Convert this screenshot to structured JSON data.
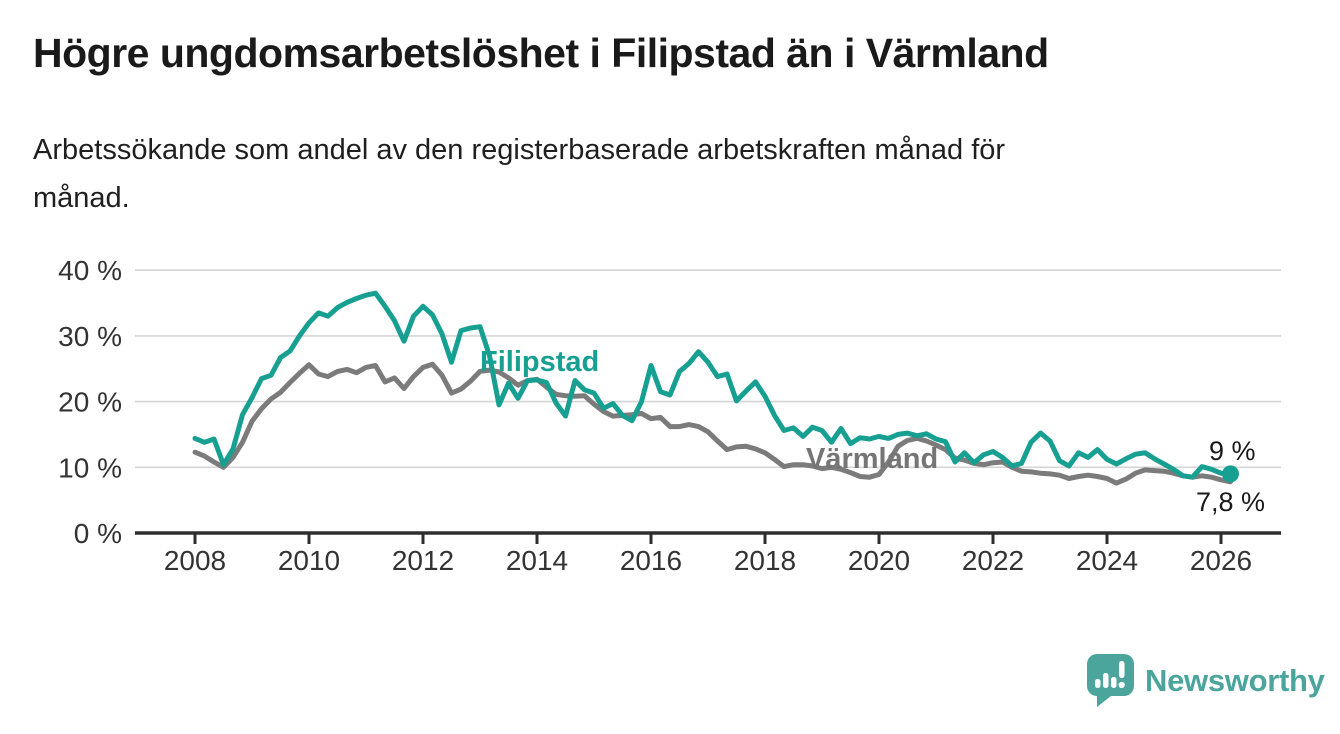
{
  "header": {
    "title": "Högre ungdomsarbetslöshet i Filipstad än i Värmland",
    "subtitle_line1": "Arbetssökande som andel av den registerbaserade arbetskraften månad för",
    "subtitle_line2": "månad."
  },
  "footer": {
    "brand_name": "Newsworthy",
    "brand_color": "#4ba59d",
    "logo_icon": "speech-bubble-bar-chart-exclamation"
  },
  "colors": {
    "background": "#ffffff",
    "title_text": "#1a1a1a",
    "axis_text": "#333333",
    "gridline": "#d5d5d5",
    "axis_line": "#2e2e2e",
    "filipstad_teal": "#17a092",
    "varmland_gray": "#7b7b7b",
    "varmland_label_gray": "#757575",
    "end_label_text": "#1a1a1a"
  },
  "chart_data": {
    "type": "line",
    "title": "Högre ungdomsarbetslöshet i Filipstad än i Värmland",
    "subtitle": "Arbetssökande som andel av den registerbaserade arbetskraften månad för månad.",
    "unit": "%",
    "grid": true,
    "legend_position": "inline-labels",
    "x_start_year": 2008.0,
    "x_step_months": 2,
    "x_end_year": 2026.17,
    "xlim": [
      2007.9,
      2027.05
    ],
    "ylim": [
      0,
      42
    ],
    "x_ticks": [
      {
        "value": 2008,
        "label": "2008"
      },
      {
        "value": 2010,
        "label": "2010"
      },
      {
        "value": 2012,
        "label": "2012"
      },
      {
        "value": 2014,
        "label": "2014"
      },
      {
        "value": 2016,
        "label": "2016"
      },
      {
        "value": 2018,
        "label": "2018"
      },
      {
        "value": 2020,
        "label": "2020"
      },
      {
        "value": 2022,
        "label": "2022"
      },
      {
        "value": 2024,
        "label": "2024"
      },
      {
        "value": 2026,
        "label": "2026"
      }
    ],
    "y_ticks": [
      {
        "value": 0,
        "label": "0 %"
      },
      {
        "value": 10,
        "label": "10 %"
      },
      {
        "value": 20,
        "label": "20 %"
      },
      {
        "value": 30,
        "label": "30 %"
      },
      {
        "value": 40,
        "label": "40 %"
      }
    ],
    "series": [
      {
        "name": "Filipstad",
        "color": "#17a092",
        "end_label": "9 %",
        "end_value": 9.0,
        "end_dot": true,
        "values": [
          14.4,
          13.8,
          14.3,
          10.4,
          12.8,
          18.0,
          20.6,
          23.5,
          24.0,
          26.7,
          27.7,
          30.0,
          32.0,
          33.5,
          33.0,
          34.3,
          35.1,
          35.7,
          36.2,
          36.5,
          34.5,
          32.3,
          29.2,
          33.0,
          34.5,
          33.2,
          30.3,
          26.0,
          30.8,
          31.2,
          31.4,
          27.0,
          19.5,
          22.8,
          20.5,
          23.2,
          23.3,
          22.9,
          19.8,
          17.8,
          23.2,
          21.8,
          21.3,
          19.0,
          19.7,
          17.9,
          17.1,
          20.0,
          25.5,
          21.5,
          21.0,
          24.6,
          25.8,
          27.6,
          26.0,
          23.8,
          24.2,
          20.1,
          21.6,
          23.0,
          20.8,
          17.9,
          15.6,
          16.0,
          14.7,
          16.1,
          15.6,
          13.8,
          15.9,
          13.6,
          14.5,
          14.3,
          14.7,
          14.4,
          15.0,
          15.2,
          14.8,
          15.1,
          14.3,
          13.9,
          10.8,
          12.2,
          10.7,
          11.9,
          12.4,
          11.5,
          10.2,
          10.6,
          13.8,
          15.2,
          14.0,
          11.0,
          10.2,
          12.2,
          11.5,
          12.7,
          11.2,
          10.5,
          11.3,
          12.0,
          12.2,
          11.3,
          10.5,
          9.7,
          8.7,
          8.5,
          10.1,
          9.7,
          9.1,
          9.0
        ]
      },
      {
        "name": "Värmland",
        "color": "#7b7b7b",
        "end_label": "7,8 %",
        "end_value": 7.8,
        "end_dot": false,
        "values": [
          12.3,
          11.7,
          10.8,
          10.0,
          11.5,
          13.8,
          17.0,
          18.9,
          20.4,
          21.4,
          22.9,
          24.3,
          25.6,
          24.2,
          23.8,
          24.6,
          24.9,
          24.4,
          25.2,
          25.5,
          23.0,
          23.6,
          22.0,
          23.8,
          25.2,
          25.7,
          24.0,
          21.3,
          21.9,
          23.1,
          24.6,
          24.8,
          24.5,
          23.6,
          22.5,
          23.2,
          23.4,
          22.2,
          21.1,
          20.9,
          20.8,
          20.9,
          19.6,
          18.5,
          17.8,
          17.9,
          18.0,
          18.2,
          17.4,
          17.6,
          16.2,
          16.2,
          16.5,
          16.2,
          15.4,
          14.0,
          12.7,
          13.1,
          13.2,
          12.8,
          12.2,
          11.2,
          10.1,
          10.4,
          10.4,
          10.2,
          9.8,
          10.0,
          9.7,
          9.2,
          8.6,
          8.5,
          8.9,
          10.8,
          13.2,
          14.1,
          14.4,
          14.0,
          13.4,
          12.7,
          11.4,
          11.1,
          10.6,
          10.4,
          10.7,
          10.8,
          10.0,
          9.4,
          9.3,
          9.1,
          9.0,
          8.8,
          8.3,
          8.6,
          8.8,
          8.6,
          8.3,
          7.6,
          8.2,
          9.1,
          9.6,
          9.5,
          9.4,
          9.1,
          8.7,
          8.5,
          8.7,
          8.5,
          8.1,
          7.8
        ]
      }
    ]
  }
}
